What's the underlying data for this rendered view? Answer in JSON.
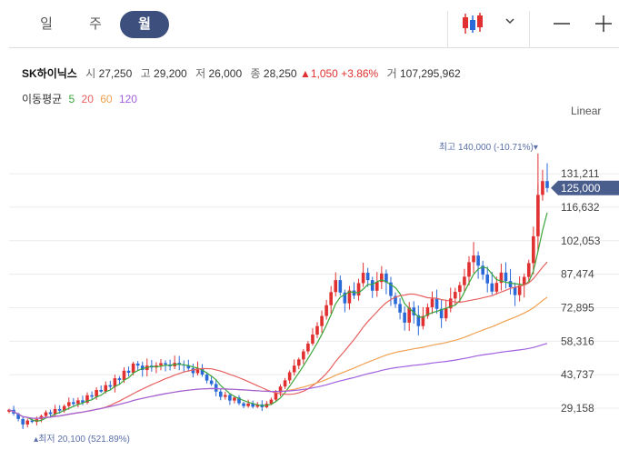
{
  "tabs": [
    {
      "label": "일",
      "active": false
    },
    {
      "label": "주",
      "active": false
    },
    {
      "label": "월",
      "active": true
    }
  ],
  "controls": {
    "chart_type_icon": "candlestick-icon",
    "dropdown_icon": "chevron-down-icon",
    "zoom_out_icon": "minus-icon",
    "zoom_in_icon": "plus-icon"
  },
  "quote": {
    "name": "SK하이닉스",
    "open_label": "시",
    "open": "27,250",
    "high_label": "고",
    "high": "29,200",
    "low_label": "저",
    "low": "26,000",
    "close_label": "종",
    "close": "28,250",
    "change": "▲1,050",
    "change_pct": "+3.86%",
    "volume_label": "거",
    "volume": "107,295,962"
  },
  "moving_average": {
    "label": "이동평균",
    "periods": [
      {
        "value": "5",
        "color": "#3aa53a"
      },
      {
        "value": "20",
        "color": "#e86060"
      },
      {
        "value": "60",
        "color": "#f0a050"
      },
      {
        "value": "120",
        "color": "#a060e0"
      }
    ]
  },
  "scale_mode": "Linear",
  "colors": {
    "up": "#e03030",
    "down": "#2a6ad8",
    "accent": "#3d4f7c",
    "current_tag": "#4a5e8e"
  },
  "chart_data": {
    "type": "candlestick",
    "y_ticks": [
      "131,211",
      "116,632",
      "102,053",
      "87,474",
      "72,895",
      "58,316",
      "43,737",
      "29,158"
    ],
    "y_tick_values": [
      131211,
      116632,
      102053,
      87474,
      72895,
      58316,
      43737,
      29158
    ],
    "ylim": [
      18500,
      153000
    ],
    "current_price_label": "125,000",
    "current_price": 125000,
    "max_label": "최고 140,000 (-10.71%)▾",
    "max_value": 140000,
    "min_label": "▴최저 20,100 (521.89%)",
    "min_value": 20100,
    "closes": [
      28500,
      26800,
      24500,
      22100,
      23800,
      23200,
      24400,
      25800,
      27400,
      26600,
      28800,
      28100,
      30100,
      31800,
      31000,
      32600,
      31600,
      34800,
      34200,
      37100,
      36400,
      39200,
      38500,
      42200,
      41400,
      45500,
      44600,
      48600,
      47700,
      45800,
      47700,
      46900,
      47800,
      48800,
      48200,
      47400,
      48900,
      48100,
      47700,
      46500,
      44400,
      46600,
      43800,
      41200,
      39700,
      36400,
      34100,
      34900,
      32500,
      33800,
      31300,
      30100,
      31200,
      29800,
      30800,
      29600,
      31100,
      32900,
      36000,
      38600,
      41300,
      44800,
      47700,
      50400,
      53900,
      57300,
      61200,
      64900,
      69300,
      74000,
      79700,
      84900,
      79500,
      74800,
      80400,
      78200,
      83600,
      88100,
      84900,
      80300,
      84100,
      87800,
      83900,
      78000,
      74500,
      70800,
      66400,
      73000,
      69600,
      64900,
      69300,
      73100,
      76800,
      72400,
      68300,
      72600,
      76900,
      79800,
      82700,
      86400,
      92700,
      95600,
      91200,
      87300,
      83500,
      79900,
      83700,
      88200,
      84500,
      81800,
      78400,
      82700,
      86300,
      92300,
      104000,
      122000,
      128000,
      125000
    ],
    "series": [
      {
        "name": "5",
        "values": []
      },
      {
        "name": "20",
        "values": []
      },
      {
        "name": "60",
        "values": []
      },
      {
        "name": "120",
        "values": []
      }
    ]
  }
}
